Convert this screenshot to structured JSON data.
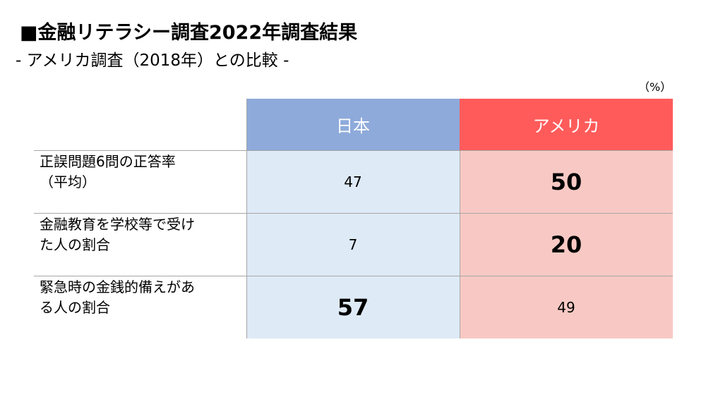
{
  "title": "■金融リテラシー調査2022年調査結果",
  "subtitle": "- アメリカ調査（2018年）との比較 -",
  "unit": "（%）",
  "headers": {
    "japan": "日本",
    "usa": "アメリカ"
  },
  "rows": [
    {
      "label_line1": "正誤問題6問の正答率",
      "label_line2": "（平均）",
      "japan": "47",
      "usa": "50"
    },
    {
      "label_line1": "金融教育を学校等で受け",
      "label_line2": "た人の割合",
      "japan": "7",
      "usa": "20"
    },
    {
      "label_line1": "緊急時の金銭的備えがあ",
      "label_line2": "る人の割合",
      "japan": "57",
      "usa": "49"
    }
  ],
  "colors": {
    "japan_header": "#8eaadb",
    "usa_header": "#ff5b5b",
    "japan_cell": "#deeaf6",
    "usa_cell": "#f8c9c4"
  }
}
